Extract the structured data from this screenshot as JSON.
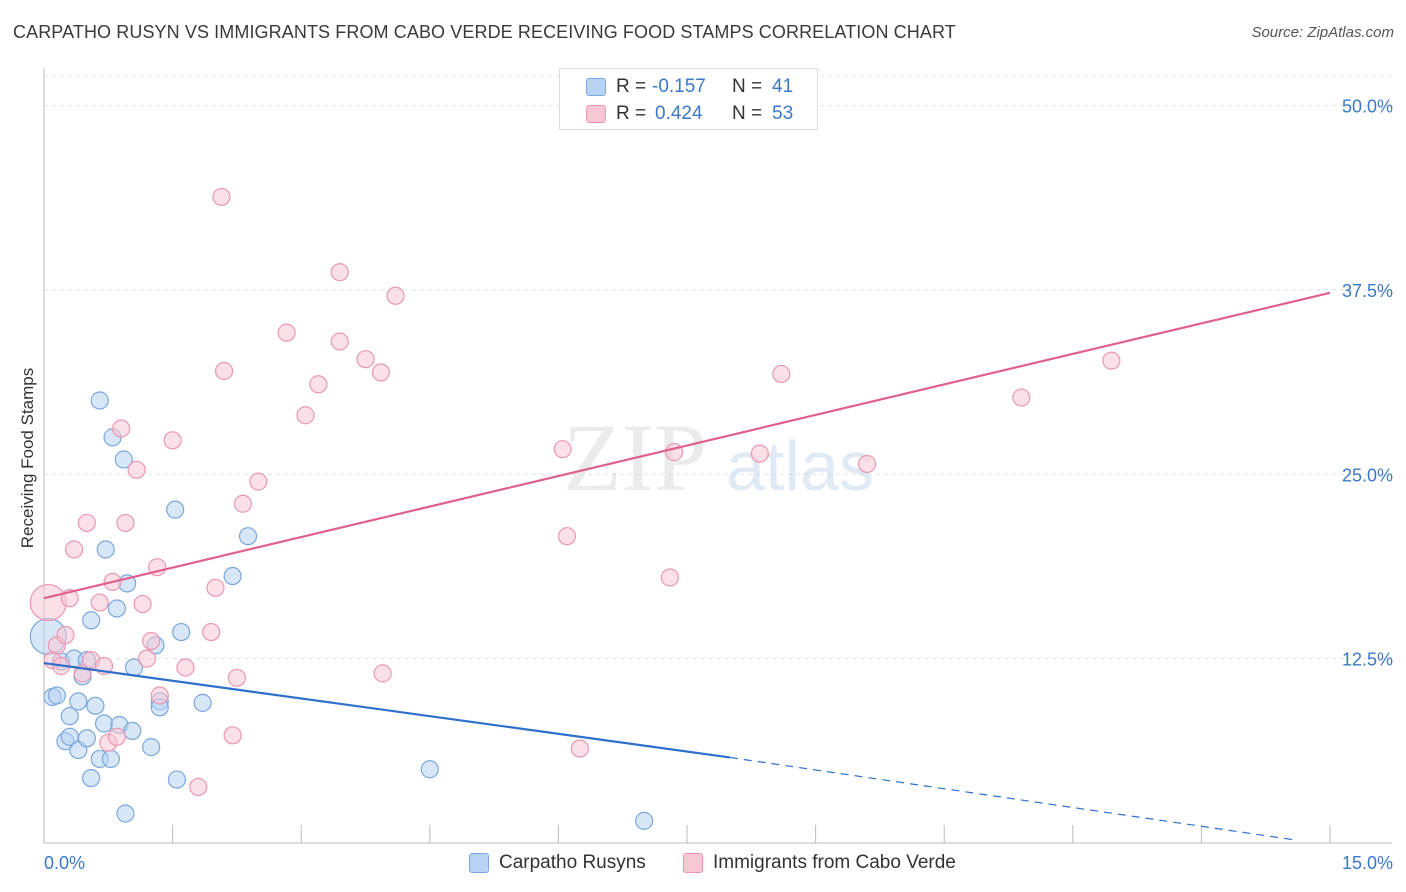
{
  "title": "CARPATHO RUSYN VS IMMIGRANTS FROM CABO VERDE RECEIVING FOOD STAMPS CORRELATION CHART",
  "source": "Source: ZipAtlas.com",
  "watermark": {
    "zip": "ZIP",
    "atlas": "atlas"
  },
  "legend": {
    "rows": [
      {
        "r_label": "R =",
        "r_value": "-0.157",
        "n_label": "N =",
        "n_value": "41",
        "color": "#7aa7dc"
      },
      {
        "r_label": "R =",
        "r_value": "0.424",
        "n_label": "N =",
        "n_value": "53",
        "color": "#ea97b1"
      }
    ]
  },
  "bottom_legend": [
    {
      "label": "Carpatho Rusyns",
      "color": "#7aa7dc"
    },
    {
      "label": "Immigrants from Cabo Verde",
      "color": "#ea97b1"
    }
  ],
  "chart_data": {
    "type": "scatter",
    "title": "CARPATHO RUSYN VS IMMIGRANTS FROM CABO VERDE RECEIVING FOOD STAMPS CORRELATION CHART",
    "xlabel": "",
    "ylabel": "Receiving Food Stamps",
    "xlim": [
      0,
      15
    ],
    "ylim": [
      0,
      52
    ],
    "x_tick_labels": [
      "0.0%",
      "15.0%"
    ],
    "y_ticks": [
      12.5,
      25.0,
      37.5,
      50.0
    ],
    "y_tick_labels": [
      "12.5%",
      "25.0%",
      "37.5%",
      "50.0%"
    ],
    "grid": true,
    "series": [
      {
        "name": "Carpatho Rusyns",
        "color": "#7aa7dc",
        "fill": "#b7d3f2",
        "trend": {
          "x": [
            0,
            8.0
          ],
          "y": [
            12.2,
            5.8
          ],
          "dashed_to": [
            14.6,
            0.2
          ],
          "color": "#2f6fcc"
        },
        "points": [
          [
            0.05,
            14.0,
            "L"
          ],
          [
            0.1,
            9.9
          ],
          [
            0.15,
            10.0
          ],
          [
            0.2,
            12.3
          ],
          [
            0.25,
            6.9
          ],
          [
            0.3,
            8.6
          ],
          [
            0.3,
            7.2
          ],
          [
            0.35,
            12.5
          ],
          [
            0.4,
            6.3
          ],
          [
            0.4,
            9.6
          ],
          [
            0.45,
            11.3
          ],
          [
            0.5,
            12.4
          ],
          [
            0.5,
            7.1
          ],
          [
            0.55,
            4.4
          ],
          [
            0.55,
            15.1
          ],
          [
            0.6,
            9.3
          ],
          [
            0.65,
            5.7
          ],
          [
            0.65,
            30.0
          ],
          [
            0.7,
            8.1
          ],
          [
            0.72,
            19.9
          ],
          [
            0.78,
            5.7
          ],
          [
            0.8,
            27.5
          ],
          [
            0.85,
            15.9
          ],
          [
            0.88,
            8.0
          ],
          [
            0.93,
            26.0
          ],
          [
            0.95,
            2.0
          ],
          [
            0.97,
            17.6
          ],
          [
            1.03,
            7.6
          ],
          [
            1.25,
            6.5
          ],
          [
            1.3,
            13.4
          ],
          [
            1.35,
            9.6
          ],
          [
            1.35,
            9.2
          ],
          [
            1.53,
            22.6
          ],
          [
            1.55,
            4.3
          ],
          [
            1.6,
            14.3
          ],
          [
            1.85,
            9.5
          ],
          [
            2.2,
            18.1
          ],
          [
            2.38,
            20.8
          ],
          [
            4.5,
            5.0
          ],
          [
            7.0,
            1.5
          ],
          [
            1.05,
            11.9
          ]
        ]
      },
      {
        "name": "Immigrants from Cabo Verde",
        "color": "#ea97b1",
        "fill": "#f9c6d4",
        "trend": {
          "x": [
            0,
            15.0
          ],
          "y": [
            16.6,
            37.3
          ],
          "color": "#e0608a"
        },
        "points": [
          [
            0.05,
            16.3,
            "L"
          ],
          [
            0.1,
            12.4
          ],
          [
            0.15,
            13.4
          ],
          [
            0.2,
            12.0
          ],
          [
            0.25,
            14.1
          ],
          [
            0.3,
            16.6
          ],
          [
            0.35,
            19.9
          ],
          [
            0.45,
            11.5
          ],
          [
            0.5,
            21.7
          ],
          [
            0.55,
            12.4
          ],
          [
            0.65,
            16.3
          ],
          [
            0.7,
            12.0
          ],
          [
            0.75,
            6.8
          ],
          [
            0.8,
            17.7
          ],
          [
            0.85,
            7.2
          ],
          [
            0.9,
            28.1
          ],
          [
            0.95,
            21.7
          ],
          [
            1.08,
            25.3
          ],
          [
            1.15,
            16.2
          ],
          [
            1.2,
            12.5
          ],
          [
            1.25,
            13.7
          ],
          [
            1.32,
            18.7
          ],
          [
            1.35,
            10.0
          ],
          [
            1.5,
            27.3
          ],
          [
            1.65,
            11.9
          ],
          [
            1.8,
            3.8
          ],
          [
            1.95,
            14.3
          ],
          [
            2.0,
            17.3
          ],
          [
            2.07,
            43.8
          ],
          [
            2.1,
            32.0
          ],
          [
            2.2,
            7.3
          ],
          [
            2.25,
            11.2
          ],
          [
            2.32,
            23.0
          ],
          [
            2.5,
            24.5
          ],
          [
            2.83,
            34.6
          ],
          [
            3.05,
            29.0
          ],
          [
            3.2,
            31.1
          ],
          [
            3.45,
            38.7
          ],
          [
            3.45,
            34.0
          ],
          [
            3.75,
            32.8
          ],
          [
            3.93,
            31.9
          ],
          [
            3.95,
            11.5
          ],
          [
            4.1,
            37.1
          ],
          [
            6.05,
            26.7
          ],
          [
            6.1,
            20.8
          ],
          [
            6.25,
            6.4
          ],
          [
            7.3,
            18.0
          ],
          [
            7.35,
            26.5
          ],
          [
            8.35,
            26.4
          ],
          [
            8.6,
            31.8
          ],
          [
            9.6,
            25.7
          ],
          [
            11.4,
            30.2
          ],
          [
            12.45,
            32.7
          ]
        ]
      }
    ]
  }
}
